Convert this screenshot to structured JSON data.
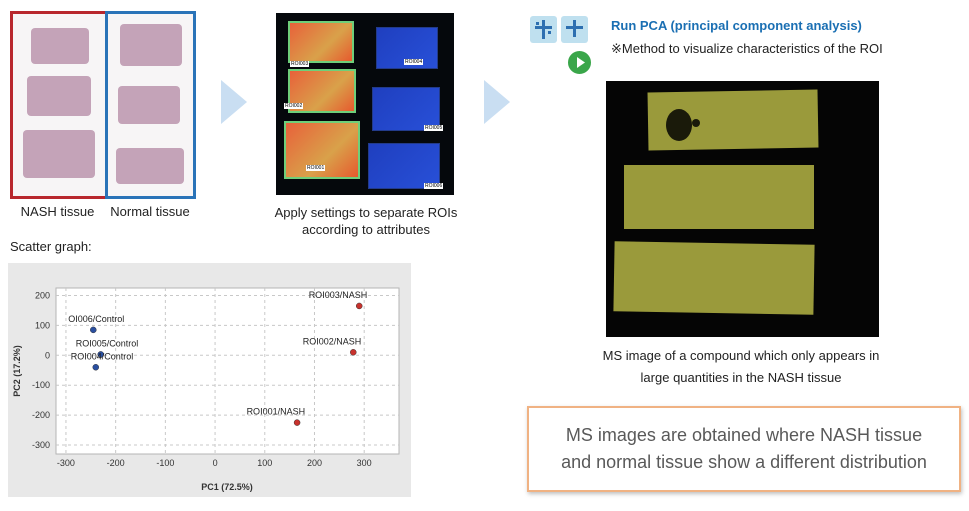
{
  "tissues": {
    "nash_label": "NASH tissue",
    "normal_label": "Normal tissue"
  },
  "roi_step": {
    "caption_line1": "Apply settings to separate ROIs",
    "caption_line2": "according to attributes",
    "roi_tags": [
      "ROI003",
      "ROI004",
      "ROI002",
      "ROI005",
      "ROI001",
      "ROI006"
    ]
  },
  "pca": {
    "title": "Run PCA (principal component analysis)",
    "note": "※Method to visualize characteristics of the ROI"
  },
  "ms_image": {
    "caption_line1": "MS image of a compound which only appears in",
    "caption_line2": "large quantities in the NASH tissue"
  },
  "callout": {
    "line1": "MS images are obtained where NASH tissue",
    "line2": "and normal tissue show a different distribution"
  },
  "scatter": {
    "heading": "Scatter graph:"
  },
  "chart_data": {
    "type": "scatter",
    "title": "",
    "xlabel": "PC1 (72.5%)",
    "ylabel": "PC2 (17.2%)",
    "xlim": [
      -320,
      370
    ],
    "ylim": [
      -330,
      225
    ],
    "xticks": [
      -300,
      -200,
      -100,
      0,
      100,
      200,
      300
    ],
    "yticks": [
      200,
      100,
      0,
      -100,
      -200,
      -300
    ],
    "grid": true,
    "series": [
      {
        "group": "Control",
        "color": "#2a4fa0",
        "points": [
          {
            "label": "OI006/Control",
            "x": -245,
            "y": 85
          },
          {
            "label": "ROI005/Control",
            "x": -230,
            "y": 3
          },
          {
            "label": "ROI004/Control",
            "x": -240,
            "y": -40
          }
        ]
      },
      {
        "group": "NASH",
        "color": "#c8322d",
        "points": [
          {
            "label": "ROI003/NASH",
            "x": 290,
            "y": 165
          },
          {
            "label": "ROI002/NASH",
            "x": 278,
            "y": 10
          },
          {
            "label": "ROI001/NASH",
            "x": 165,
            "y": -225
          }
        ]
      }
    ]
  }
}
